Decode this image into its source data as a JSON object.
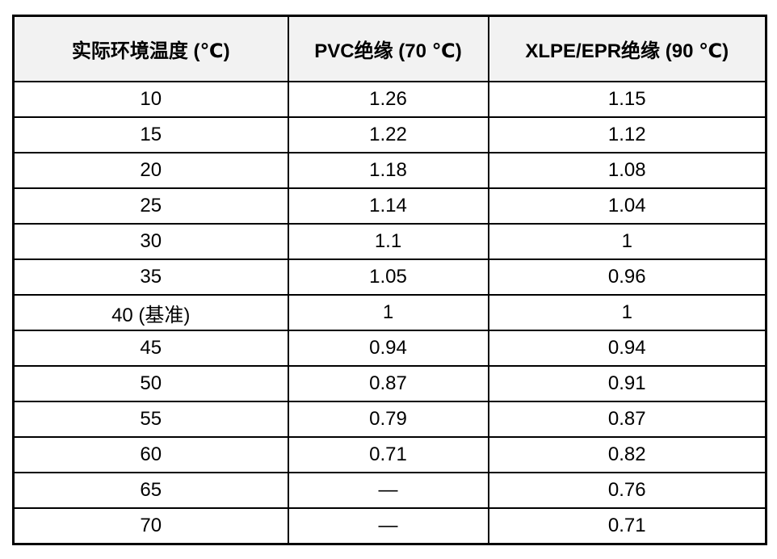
{
  "page": {
    "background": "#ffffff",
    "header_bg": "#f2f2f2",
    "border_color": "#000000",
    "text_color": "#000000"
  },
  "table": {
    "columns": [
      "实际环境温度 (℃)",
      "PVC绝缘 (70 ℃)",
      "XLPE/EPR绝缘 (90 ℃)"
    ],
    "rows": [
      [
        "10",
        "1.26",
        "1.15"
      ],
      [
        "15",
        "1.22",
        "1.12"
      ],
      [
        "20",
        "1.18",
        "1.08"
      ],
      [
        "25",
        "1.14",
        "1.04"
      ],
      [
        "30",
        "1.1",
        "1"
      ],
      [
        "35",
        "1.05",
        "0.96"
      ],
      [
        "40 (基准)",
        "1",
        "1"
      ],
      [
        "45",
        "0.94",
        "0.94"
      ],
      [
        "50",
        "0.87",
        "0.91"
      ],
      [
        "55",
        "0.79",
        "0.87"
      ],
      [
        "60",
        "0.71",
        "0.82"
      ],
      [
        "65",
        "—",
        "0.76"
      ],
      [
        "70",
        "—",
        "0.71"
      ]
    ]
  }
}
